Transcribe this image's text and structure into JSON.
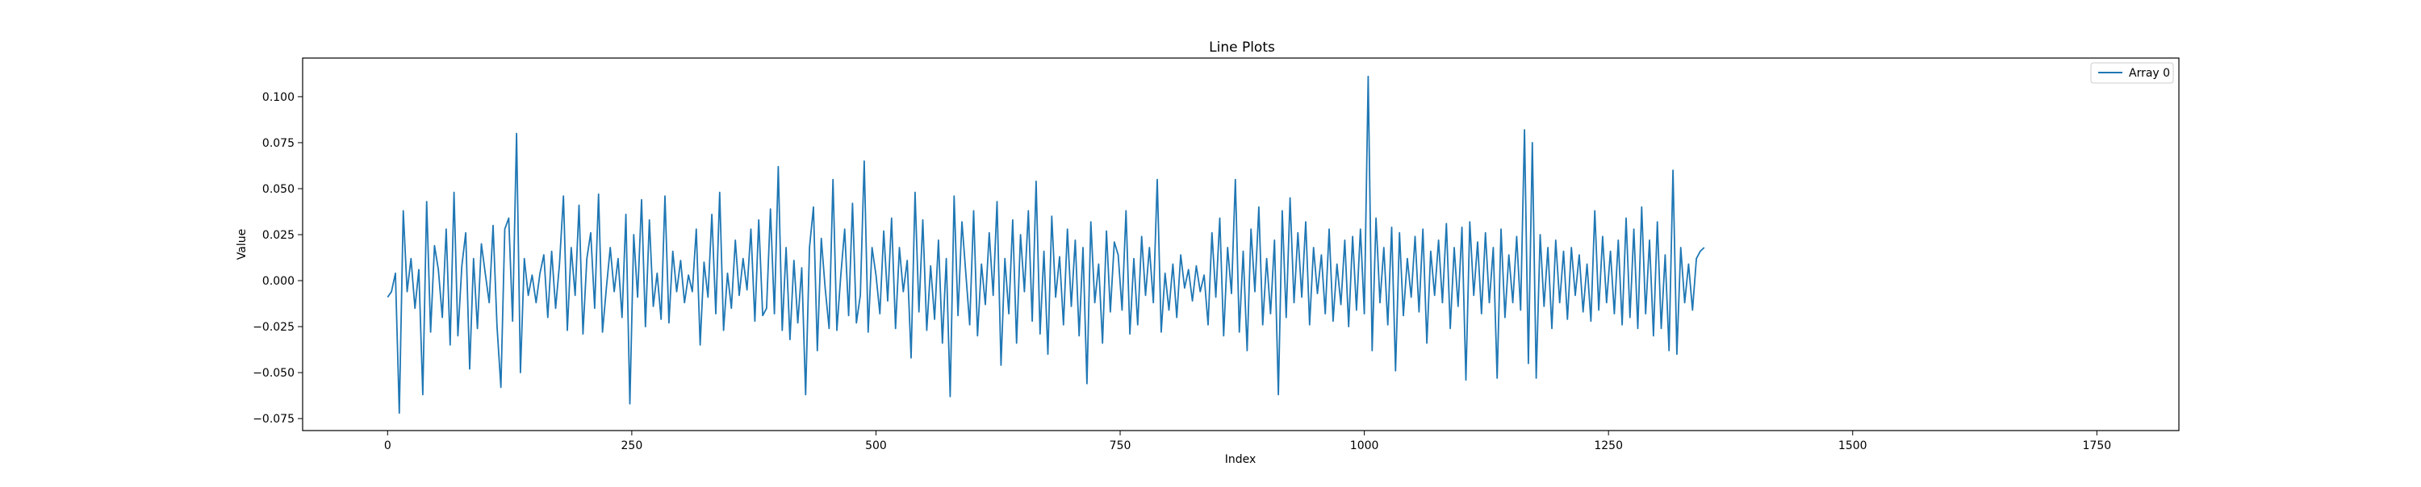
{
  "chart_data": {
    "type": "line",
    "title": "Line Plots",
    "xlabel": "Index",
    "ylabel": "Value",
    "xlim": [
      -87,
      1834
    ],
    "ylim": [
      -0.0815,
      0.121
    ],
    "x_ticks": [
      0,
      250,
      500,
      750,
      1000,
      1250,
      1500,
      1750
    ],
    "x_tick_labels": [
      "0",
      "250",
      "500",
      "750",
      "1000",
      "1250",
      "1500",
      "1750"
    ],
    "y_ticks": [
      -0.075,
      -0.05,
      -0.025,
      0.0,
      0.025,
      0.05,
      0.075,
      0.1
    ],
    "y_tick_labels": [
      "−0.075",
      "−0.050",
      "−0.025",
      "0.000",
      "0.025",
      "0.050",
      "0.075",
      "0.100"
    ],
    "grid": false,
    "legend": {
      "placement": "top-right",
      "entries": [
        "Array 0"
      ]
    },
    "colors": {
      "series": "#1f77b4",
      "axes": "#000000",
      "legend_border": "#cccccc"
    },
    "series": [
      {
        "name": "Array 0",
        "x_start": 0,
        "x_step": 4,
        "values": [
          -0.009,
          -0.006,
          0.004,
          -0.072,
          0.038,
          -0.006,
          0.012,
          -0.015,
          0.006,
          -0.062,
          0.043,
          -0.028,
          0.019,
          0.006,
          -0.02,
          0.028,
          -0.035,
          0.048,
          -0.03,
          0.008,
          0.026,
          -0.048,
          0.012,
          -0.026,
          0.02,
          0.004,
          -0.012,
          0.03,
          -0.025,
          -0.058,
          0.028,
          0.034,
          -0.022,
          0.08,
          -0.05,
          0.012,
          -0.008,
          0.003,
          -0.012,
          0.004,
          0.014,
          -0.02,
          0.016,
          -0.015,
          0.009,
          0.046,
          -0.027,
          0.018,
          -0.008,
          0.041,
          -0.029,
          0.012,
          0.026,
          -0.015,
          0.047,
          -0.028,
          -0.004,
          0.018,
          -0.006,
          0.012,
          -0.02,
          0.036,
          -0.067,
          0.025,
          -0.009,
          0.044,
          -0.025,
          0.033,
          -0.014,
          0.004,
          -0.021,
          0.046,
          -0.023,
          0.016,
          -0.006,
          0.011,
          -0.012,
          0.003,
          -0.006,
          0.028,
          -0.035,
          0.01,
          -0.009,
          0.036,
          -0.018,
          0.048,
          -0.027,
          0.004,
          -0.015,
          0.022,
          -0.008,
          0.012,
          -0.005,
          0.028,
          -0.022,
          0.033,
          -0.019,
          -0.015,
          0.039,
          -0.018,
          0.062,
          -0.027,
          0.018,
          -0.032,
          0.011,
          -0.023,
          0.007,
          -0.062,
          0.018,
          0.04,
          -0.038,
          0.023,
          -0.004,
          -0.026,
          0.055,
          -0.027,
          0.003,
          0.028,
          -0.019,
          0.042,
          -0.023,
          -0.008,
          0.065,
          -0.028,
          0.018,
          0.003,
          -0.018,
          0.027,
          -0.011,
          0.034,
          -0.026,
          0.018,
          -0.006,
          0.011,
          -0.042,
          0.048,
          -0.017,
          0.033,
          -0.027,
          0.008,
          -0.021,
          0.022,
          -0.034,
          0.012,
          -0.063,
          0.046,
          -0.019,
          0.032,
          0.004,
          -0.024,
          0.038,
          -0.03,
          0.009,
          -0.013,
          0.026,
          -0.008,
          0.043,
          -0.046,
          0.012,
          -0.018,
          0.033,
          -0.034,
          0.025,
          -0.006,
          0.038,
          -0.022,
          0.054,
          -0.029,
          0.016,
          -0.04,
          0.035,
          -0.009,
          0.013,
          -0.024,
          0.028,
          -0.014,
          0.022,
          -0.03,
          0.018,
          -0.056,
          0.032,
          -0.012,
          0.009,
          -0.034,
          0.027,
          -0.017,
          0.021,
          0.014,
          -0.016,
          0.038,
          -0.029,
          0.012,
          -0.024,
          0.024,
          -0.008,
          0.018,
          -0.012,
          0.055,
          -0.028,
          0.004,
          -0.016,
          0.009,
          -0.02,
          0.014,
          -0.004,
          0.006,
          -0.011,
          0.008,
          -0.006,
          0.003,
          -0.024,
          0.026,
          -0.009,
          0.034,
          -0.03,
          0.018,
          -0.007,
          0.055,
          -0.028,
          0.016,
          -0.038,
          0.028,
          -0.006,
          0.04,
          -0.024,
          0.012,
          -0.018,
          0.022,
          -0.062,
          0.038,
          -0.02,
          0.045,
          -0.012,
          0.026,
          -0.009,
          0.032,
          -0.024,
          0.018,
          -0.007,
          0.014,
          -0.018,
          0.028,
          -0.022,
          0.009,
          -0.013,
          0.022,
          -0.025,
          0.024,
          -0.016,
          0.028,
          -0.018,
          0.111,
          -0.038,
          0.034,
          -0.012,
          0.018,
          -0.024,
          0.029,
          -0.049,
          0.026,
          -0.019,
          0.012,
          -0.009,
          0.024,
          -0.017,
          0.028,
          -0.034,
          0.016,
          -0.008,
          0.022,
          -0.012,
          0.031,
          -0.026,
          0.018,
          -0.014,
          0.029,
          -0.054,
          0.032,
          -0.008,
          0.021,
          -0.018,
          0.026,
          -0.012,
          0.018,
          -0.053,
          0.028,
          -0.02,
          0.014,
          -0.012,
          0.024,
          -0.016,
          0.082,
          -0.045,
          0.075,
          -0.053,
          0.025,
          -0.014,
          0.018,
          -0.026,
          0.022,
          -0.012,
          0.016,
          -0.021,
          0.018,
          -0.008,
          0.014,
          -0.017,
          0.009,
          -0.022,
          0.038,
          -0.016,
          0.024,
          -0.012,
          0.016,
          -0.018,
          0.022,
          -0.024,
          0.034,
          -0.02,
          0.028,
          -0.026,
          0.04,
          -0.018,
          0.022,
          -0.03,
          0.032,
          -0.026,
          0.014,
          -0.038,
          0.06,
          -0.04,
          0.018,
          -0.012,
          0.009,
          -0.016,
          0.012,
          0.016,
          0.018
        ]
      }
    ]
  }
}
